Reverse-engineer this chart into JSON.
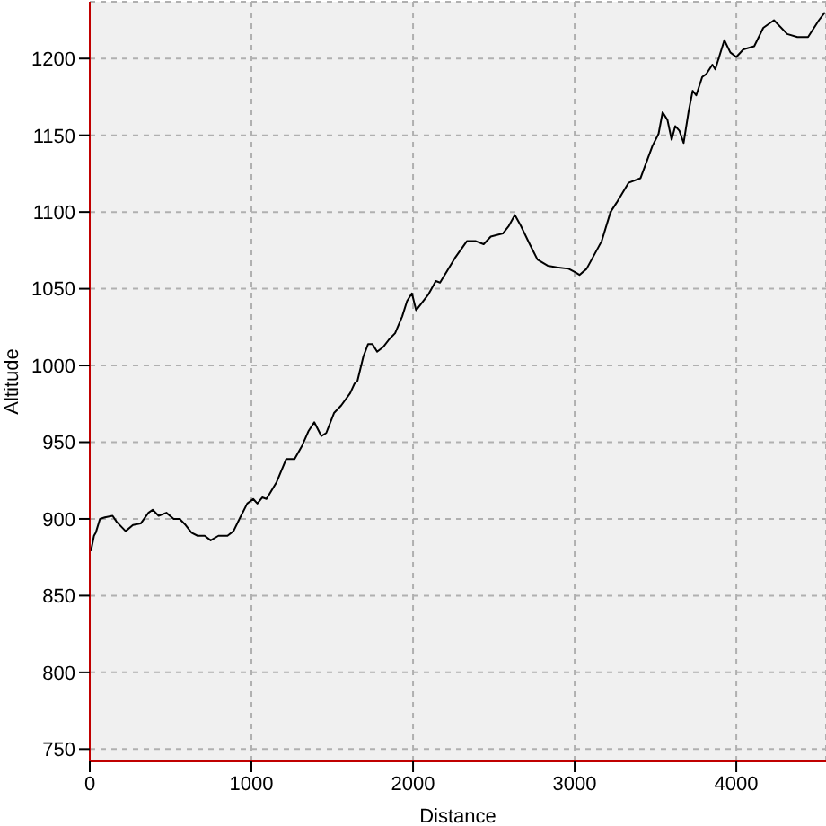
{
  "chart_data": {
    "type": "line",
    "xlabel": "Distance",
    "ylabel": "Altitude",
    "xlim": [
      0,
      4555
    ],
    "xticks": [
      0,
      1000,
      2000,
      3000,
      4000
    ],
    "ylim": [
      742,
      1237
    ],
    "yticks": [
      750,
      800,
      850,
      900,
      950,
      1000,
      1050,
      1100,
      1150,
      1200
    ],
    "grid": true,
    "legend": false,
    "marker": "none",
    "line_style": "solid",
    "series": [
      {
        "color": "#000000",
        "x": [
          7,
          26,
          37,
          63,
          93,
          141,
          167,
          222,
          267,
          315,
          363,
          389,
          426,
          474,
          519,
          556,
          593,
          630,
          667,
          711,
          748,
          796,
          852,
          889,
          926,
          974,
          1011,
          1037,
          1067,
          1093,
          1156,
          1215,
          1267,
          1315,
          1352,
          1389,
          1433,
          1463,
          1511,
          1556,
          1611,
          1637,
          1656,
          1693,
          1722,
          1748,
          1778,
          1815,
          1852,
          1889,
          1933,
          1963,
          1993,
          2019,
          2093,
          2141,
          2167,
          2259,
          2333,
          2389,
          2437,
          2481,
          2556,
          2593,
          2630,
          2667,
          2722,
          2770,
          2833,
          2889,
          2963,
          3000,
          3030,
          3074,
          3167,
          3222,
          3259,
          3333,
          3407,
          3481,
          3519,
          3544,
          3574,
          3600,
          3622,
          3648,
          3674,
          3704,
          3730,
          3752,
          3789,
          3815,
          3852,
          3870,
          3926,
          3963,
          4000,
          4044,
          4111,
          4167,
          4233,
          4315,
          4378,
          4444,
          4511,
          4548
        ],
        "values": [
          879,
          889,
          891,
          900,
          901,
          902,
          898,
          892,
          896,
          897,
          904,
          906,
          902,
          904,
          900,
          900,
          896,
          891,
          889,
          889,
          886,
          889,
          889,
          892,
          900,
          910,
          913,
          910,
          914,
          913,
          924,
          939,
          939,
          948,
          957,
          963,
          954,
          956,
          969,
          974,
          982,
          988,
          990,
          1006,
          1014,
          1014,
          1009,
          1012,
          1017,
          1021,
          1032,
          1042,
          1047,
          1036,
          1046,
          1055,
          1054,
          1070,
          1081,
          1081,
          1079,
          1084,
          1086,
          1091,
          1098,
          1091,
          1079,
          1069,
          1065,
          1064,
          1063,
          1061,
          1059,
          1063,
          1081,
          1100,
          1106,
          1119,
          1122,
          1143,
          1151,
          1165,
          1160,
          1147,
          1156,
          1153,
          1145,
          1165,
          1179,
          1176,
          1188,
          1190,
          1196,
          1193,
          1212,
          1204,
          1201,
          1206,
          1208,
          1220,
          1225,
          1216,
          1214,
          1214,
          1225,
          1230
        ]
      }
    ]
  }
}
